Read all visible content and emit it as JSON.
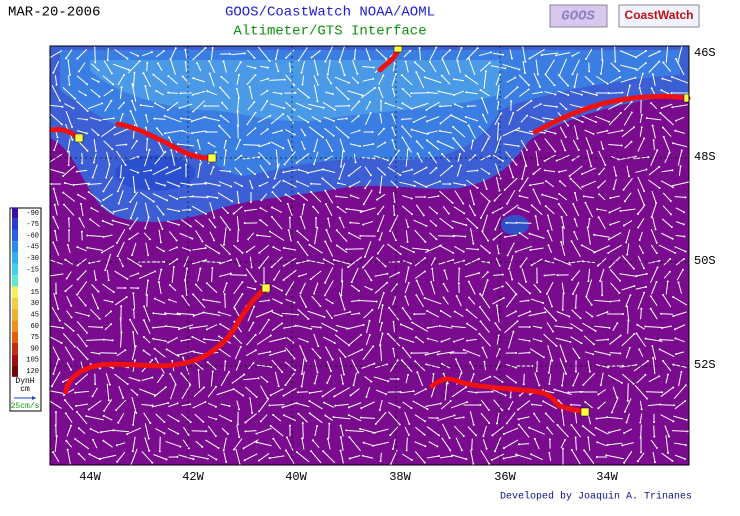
{
  "header": {
    "date": "MAR-20-2006",
    "title": "GOOS/CoastWatch  NOAA/AOML",
    "subtitle": "Altimeter/GTS Interface",
    "logos": [
      "GOOS",
      "CoastWatch"
    ]
  },
  "map": {
    "lat_labels": [
      "46S",
      "48S",
      "50S",
      "52S"
    ],
    "lon_labels": [
      "44W",
      "42W",
      "40W",
      "38W",
      "36W",
      "34W"
    ]
  },
  "colorbar": {
    "ticks": [
      -90,
      -75,
      -60,
      -45,
      -30,
      -15,
      0,
      15,
      30,
      45,
      60,
      75,
      90,
      105,
      120
    ],
    "colors": [
      "#3a10a0",
      "#2a3ad0",
      "#2a60e0",
      "#2a8ae8",
      "#30b0f0",
      "#40d0f0",
      "#60e8d0",
      "#f0f060",
      "#f0d040",
      "#f0b030",
      "#f09020",
      "#e06010",
      "#c03010",
      "#a01010",
      "#700808"
    ],
    "unit": "DynH",
    "unit2": "cm",
    "scale": "25cm/s"
  },
  "footer": {
    "credit": "Developed by Joaquin A. Trinanes"
  }
}
